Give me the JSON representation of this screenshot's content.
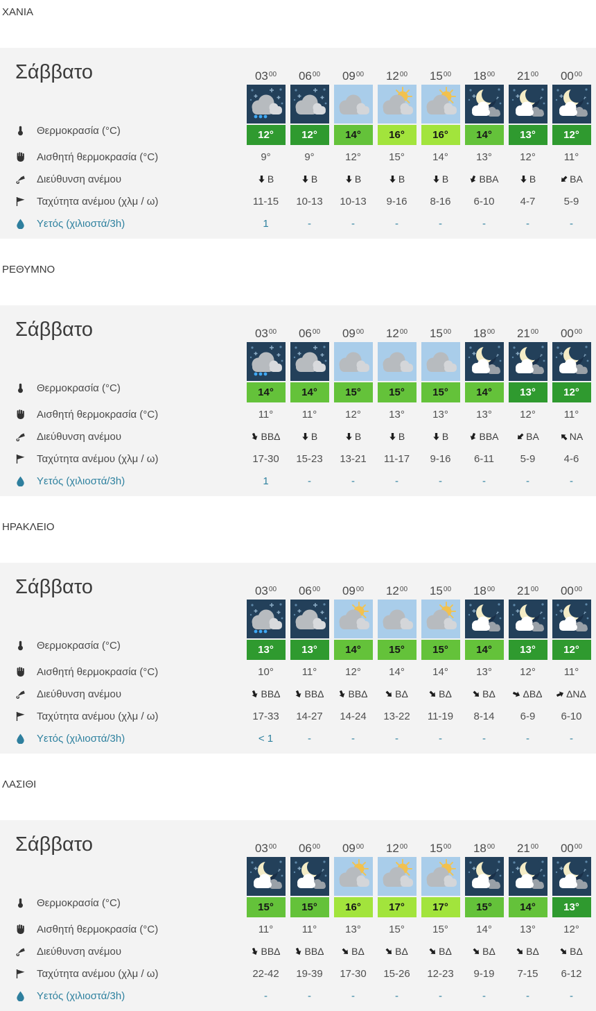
{
  "page": {
    "day_label": "Σάββατο",
    "times": [
      "03",
      "06",
      "09",
      "12",
      "15",
      "18",
      "21",
      "00"
    ],
    "time_sup": "00",
    "row_labels": {
      "temp": "Θερμοκρασία (°C)",
      "feels": "Αισθητή θερμοκρασία (°C)",
      "wind_dir": "Διεύθυνση ανέμου",
      "wind_speed": "Ταχύτητα ανέμου (χλμ / ω)",
      "precip": "Υετός (χιλιοστά/3h)"
    },
    "colors": {
      "temp_dark": "#2f9a2f",
      "temp_mid": "#64c23a",
      "temp_light": "#a2e43c",
      "night_icon_bg": "#23405a",
      "day_icon_bg": "#a9cdea",
      "precip_accent": "#2e819f",
      "table_bg": "#f3f3f3"
    }
  },
  "cities": [
    {
      "name": "ΧΑΝΙΑ",
      "icons": [
        "night-rain",
        "night-cloudy",
        "day-cloudy",
        "day-sun-cloud",
        "day-sun-cloud",
        "night-moon-cloud",
        "night-moon-cloud",
        "night-moon-cloud"
      ],
      "temps": [
        "12°",
        "12°",
        "14°",
        "16°",
        "16°",
        "14°",
        "13°",
        "12°"
      ],
      "temp_levels": [
        "dark",
        "dark",
        "mid",
        "light",
        "light",
        "mid",
        "dark",
        "dark"
      ],
      "feels": [
        "9°",
        "9°",
        "12°",
        "15°",
        "14°",
        "13°",
        "12°",
        "11°"
      ],
      "wind": [
        {
          "abbr": "Β",
          "deg": 90
        },
        {
          "abbr": "Β",
          "deg": 90
        },
        {
          "abbr": "Β",
          "deg": 90
        },
        {
          "abbr": "Β",
          "deg": 90
        },
        {
          "abbr": "Β",
          "deg": 90
        },
        {
          "abbr": "ΒΒΑ",
          "deg": 112.5
        },
        {
          "abbr": "Β",
          "deg": 90
        },
        {
          "abbr": "ΒΑ",
          "deg": 135
        }
      ],
      "wind_speeds": [
        "11-15",
        "10-13",
        "10-13",
        "9-16",
        "8-16",
        "6-10",
        "4-7",
        "5-9"
      ],
      "precip": [
        "1",
        "-",
        "-",
        "-",
        "-",
        "-",
        "-",
        "-"
      ]
    },
    {
      "name": "ΡΕΘΥΜΝΟ",
      "icons": [
        "night-rain",
        "night-cloudy",
        "day-cloudy",
        "day-cloudy",
        "day-cloudy",
        "night-moon-cloud",
        "night-moon-cloud",
        "night-moon-cloud"
      ],
      "temps": [
        "14°",
        "14°",
        "15°",
        "15°",
        "15°",
        "14°",
        "13°",
        "12°"
      ],
      "temp_levels": [
        "mid",
        "mid",
        "mid",
        "mid",
        "mid",
        "mid",
        "dark",
        "dark"
      ],
      "feels": [
        "11°",
        "11°",
        "12°",
        "13°",
        "13°",
        "13°",
        "12°",
        "11°"
      ],
      "wind": [
        {
          "abbr": "ΒΒΔ",
          "deg": 67.5
        },
        {
          "abbr": "Β",
          "deg": 90
        },
        {
          "abbr": "Β",
          "deg": 90
        },
        {
          "abbr": "Β",
          "deg": 90
        },
        {
          "abbr": "Β",
          "deg": 90
        },
        {
          "abbr": "ΒΒΑ",
          "deg": 112.5
        },
        {
          "abbr": "ΒΑ",
          "deg": 135
        },
        {
          "abbr": "ΝΑ",
          "deg": 225
        }
      ],
      "wind_speeds": [
        "17-30",
        "15-23",
        "13-21",
        "11-17",
        "9-16",
        "6-11",
        "5-9",
        "4-6"
      ],
      "precip": [
        "1",
        "-",
        "-",
        "-",
        "-",
        "-",
        "-",
        "-"
      ]
    },
    {
      "name": "ΗΡΑΚΛΕΙΟ",
      "icons": [
        "night-rain",
        "night-cloudy",
        "day-sun-cloud",
        "day-cloudy",
        "day-sun-cloud",
        "night-moon-cloud",
        "night-moon-cloud",
        "night-moon-cloud"
      ],
      "temps": [
        "13°",
        "13°",
        "14°",
        "15°",
        "15°",
        "14°",
        "13°",
        "12°"
      ],
      "temp_levels": [
        "dark",
        "dark",
        "mid",
        "mid",
        "mid",
        "mid",
        "dark",
        "dark"
      ],
      "feels": [
        "10°",
        "11°",
        "12°",
        "14°",
        "14°",
        "13°",
        "12°",
        "11°"
      ],
      "wind": [
        {
          "abbr": "ΒΒΔ",
          "deg": 67.5
        },
        {
          "abbr": "ΒΒΔ",
          "deg": 67.5
        },
        {
          "abbr": "ΒΒΔ",
          "deg": 67.5
        },
        {
          "abbr": "ΒΔ",
          "deg": 45
        },
        {
          "abbr": "ΒΔ",
          "deg": 45
        },
        {
          "abbr": "ΒΔ",
          "deg": 45
        },
        {
          "abbr": "ΔΒΔ",
          "deg": 22.5
        },
        {
          "abbr": "ΔΝΔ",
          "deg": -22.5
        }
      ],
      "wind_speeds": [
        "17-33",
        "14-27",
        "14-24",
        "13-22",
        "11-19",
        "8-14",
        "6-9",
        "6-10"
      ],
      "precip": [
        "< 1",
        "-",
        "-",
        "-",
        "-",
        "-",
        "-",
        "-"
      ]
    },
    {
      "name": "ΛΑΣΙΘΙ",
      "icons": [
        "night-moon-cloud",
        "night-moon-cloud",
        "day-sun-cloud",
        "day-sun-cloud",
        "day-sun-cloud",
        "night-moon-cloud",
        "night-moon-cloud",
        "night-moon-cloud"
      ],
      "temps": [
        "15°",
        "15°",
        "16°",
        "17°",
        "17°",
        "15°",
        "14°",
        "13°"
      ],
      "temp_levels": [
        "mid",
        "mid",
        "light",
        "light",
        "light",
        "mid",
        "mid",
        "dark"
      ],
      "feels": [
        "11°",
        "11°",
        "13°",
        "15°",
        "15°",
        "14°",
        "13°",
        "12°"
      ],
      "wind": [
        {
          "abbr": "ΒΒΔ",
          "deg": 67.5
        },
        {
          "abbr": "ΒΒΔ",
          "deg": 67.5
        },
        {
          "abbr": "ΒΔ",
          "deg": 45
        },
        {
          "abbr": "ΒΔ",
          "deg": 45
        },
        {
          "abbr": "ΒΔ",
          "deg": 45
        },
        {
          "abbr": "ΒΔ",
          "deg": 45
        },
        {
          "abbr": "ΒΔ",
          "deg": 45
        },
        {
          "abbr": "ΒΔ",
          "deg": 45
        }
      ],
      "wind_speeds": [
        "22-42",
        "19-39",
        "17-30",
        "15-26",
        "12-23",
        "9-19",
        "7-15",
        "6-12"
      ],
      "precip": [
        "-",
        "-",
        "-",
        "-",
        "-",
        "-",
        "-",
        "-"
      ]
    }
  ]
}
